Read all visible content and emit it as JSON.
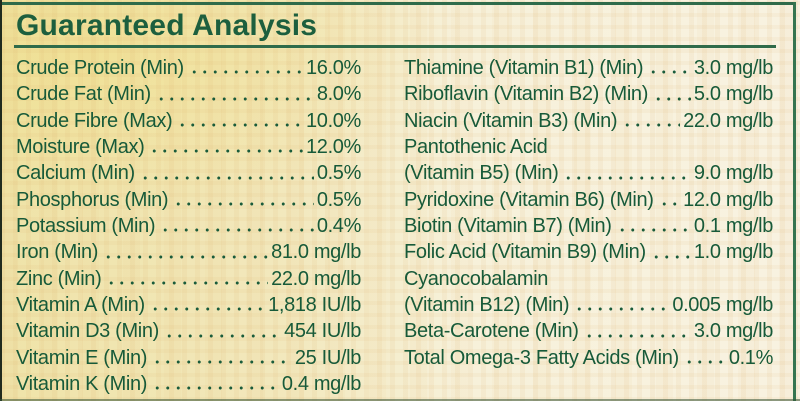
{
  "title": "Guaranteed Analysis",
  "colors": {
    "text_green": "#175a39",
    "title_green": "#1d5f3e",
    "rule_green": "#2f6b4a",
    "left_edge_dark": "#202b1e",
    "background_yellow": "#efe3a8",
    "background_cream": "#f8f2e1",
    "weave_tan": "#dbad68"
  },
  "left_column": {
    "rows": [
      {
        "label": "Crude Protein (Min)",
        "value": "16.0%"
      },
      {
        "label": "Crude Fat (Min)",
        "value": "8.0%"
      },
      {
        "label": "Crude Fibre (Max)",
        "value": "10.0%"
      },
      {
        "label": "Moisture (Max)",
        "value": "12.0%"
      },
      {
        "label": "Calcium (Min)",
        "value": "0.5%"
      },
      {
        "label": "Phosphorus (Min)",
        "value": "0.5%"
      },
      {
        "label": "Potassium (Min)",
        "value": "0.4%"
      },
      {
        "label": "Iron (Min)",
        "value": "81.0 mg/lb"
      },
      {
        "label": "Zinc (Min)",
        "value": "22.0 mg/lb"
      },
      {
        "label": "Vitamin A (Min)",
        "value": "1,818 IU/lb"
      },
      {
        "label": "Vitamin D3 (Min)",
        "value": "454 IU/lb"
      },
      {
        "label": "Vitamin E (Min)",
        "value": "25 IU/lb"
      },
      {
        "label": "Vitamin K (Min)",
        "value": "0.4 mg/lb"
      }
    ]
  },
  "right_column": {
    "rows": [
      {
        "label": "Thiamine (Vitamin B1) (Min)",
        "value": "3.0 mg/lb"
      },
      {
        "label": "Riboflavin (Vitamin B2) (Min)",
        "value": "5.0 mg/lb"
      },
      {
        "label": "Niacin (Vitamin B3) (Min)",
        "value": "22.0 mg/lb"
      },
      {
        "label": "Pantothenic Acid",
        "value": ""
      },
      {
        "label": "(Vitamin B5) (Min)",
        "value": "9.0 mg/lb"
      },
      {
        "label": "Pyridoxine (Vitamin B6) (Min)",
        "value": "12.0 mg/lb"
      },
      {
        "label": "Biotin (Vitamin B7) (Min)",
        "value": "0.1 mg/lb"
      },
      {
        "label": "Folic Acid (Vitamin B9) (Min)",
        "value": "1.0 mg/lb"
      },
      {
        "label": "Cyanocobalamin",
        "value": ""
      },
      {
        "label": "(Vitamin B12) (Min)",
        "value": "0.005 mg/lb"
      },
      {
        "label": "Beta-Carotene (Min)",
        "value": "3.0 mg/lb"
      },
      {
        "label": "Total Omega-3 Fatty Acids (Min)",
        "value": "0.1%"
      }
    ]
  }
}
